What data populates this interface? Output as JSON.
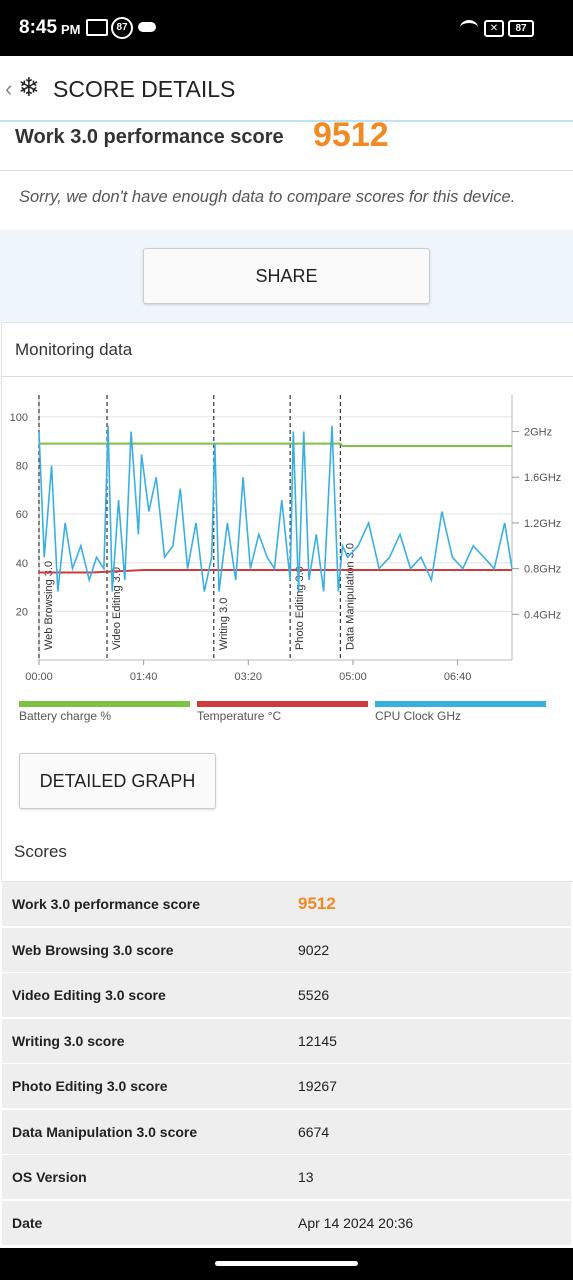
{
  "status": {
    "time": "8:45",
    "ampm": "PM",
    "badge": "87",
    "battery": "87"
  },
  "header": {
    "title": "SCORE DETAILS"
  },
  "score": {
    "label": "Work 3.0 performance score",
    "value": "9512",
    "note": "Sorry, we don't have enough data to compare scores for this device."
  },
  "share": "SHARE",
  "monitoring": {
    "title": "Monitoring data",
    "button": "DETAILED GRAPH"
  },
  "chart_data": {
    "type": "line",
    "xlim": [
      0,
      452
    ],
    "xticks": [
      {
        "value": 0,
        "label": "00:00"
      },
      {
        "value": 100,
        "label": "01:40"
      },
      {
        "value": 200,
        "label": "03:20"
      },
      {
        "value": 300,
        "label": "05:00"
      },
      {
        "value": 400,
        "label": "06:40"
      }
    ],
    "ylim": [
      0,
      109
    ],
    "yticks": [
      20,
      40,
      60,
      80,
      100
    ],
    "y2lim": [
      0,
      2.32
    ],
    "y2ticks": [
      {
        "value": 0.4,
        "label": "0.4GHz"
      },
      {
        "value": 0.8,
        "label": "0.8GHz"
      },
      {
        "value": 1.2,
        "label": "1.2GHz"
      },
      {
        "value": 1.6,
        "label": "1.6GHz"
      },
      {
        "value": 2,
        "label": "2GHz"
      }
    ],
    "grid": true,
    "markers": [
      {
        "label": "Web Browsing 3.0",
        "x": 0
      },
      {
        "label": "Video Editing 3.0",
        "x": 65
      },
      {
        "label": "Writing 3.0",
        "x": 167
      },
      {
        "label": "Photo Editing 3.0",
        "x": 240
      },
      {
        "label": "Data Manipulation 3.0",
        "x": 288
      }
    ],
    "series": [
      {
        "name": "Battery charge %",
        "color": "#7dc242",
        "x": [
          0,
          288,
          290,
          452
        ],
        "values": [
          89,
          89,
          88,
          88
        ]
      },
      {
        "name": "Temperature °C",
        "color": "#d03a3a",
        "x": [
          0,
          50,
          100,
          150,
          200,
          250,
          300,
          350,
          400,
          452
        ],
        "values": [
          36,
          36,
          37,
          37,
          37,
          37,
          37,
          37,
          37,
          37
        ]
      },
      {
        "name": "CPU Clock GHz",
        "color": "#3bb0e0",
        "axis": "y2",
        "x": [
          0,
          5,
          12,
          18,
          25,
          32,
          40,
          48,
          55,
          62,
          66,
          70,
          76,
          82,
          88,
          95,
          98,
          105,
          112,
          120,
          128,
          135,
          142,
          150,
          158,
          165,
          168,
          172,
          180,
          188,
          195,
          202,
          210,
          218,
          225,
          232,
          240,
          243,
          248,
          253,
          258,
          265,
          272,
          280,
          286,
          290,
          295,
          305,
          315,
          325,
          335,
          345,
          355,
          365,
          375,
          385,
          395,
          405,
          415,
          425,
          435,
          445,
          452
        ],
        "values": [
          2.0,
          0.9,
          1.7,
          0.6,
          1.2,
          0.8,
          1.0,
          0.7,
          0.9,
          0.8,
          2.05,
          0.6,
          1.4,
          0.7,
          2.0,
          1.1,
          1.8,
          1.3,
          1.6,
          0.9,
          1.0,
          1.5,
          0.8,
          1.2,
          0.6,
          0.9,
          1.9,
          0.6,
          1.2,
          0.7,
          1.6,
          0.8,
          1.1,
          0.9,
          0.8,
          1.4,
          0.7,
          2.0,
          0.6,
          2.0,
          0.7,
          1.1,
          0.6,
          2.05,
          0.6,
          1.0,
          0.9,
          1.0,
          1.2,
          0.8,
          0.9,
          1.1,
          0.8,
          0.9,
          0.7,
          1.3,
          0.9,
          0.8,
          1.0,
          0.9,
          0.8,
          1.2,
          0.8
        ]
      }
    ]
  },
  "scores": {
    "title": "Scores",
    "rows": [
      [
        "Work 3.0 performance score",
        "9512"
      ],
      [
        "Web Browsing 3.0 score",
        "9022"
      ],
      [
        "Video Editing 3.0 score",
        "5526"
      ],
      [
        "Writing 3.0 score",
        "12145"
      ],
      [
        "Photo Editing 3.0 score",
        "19267"
      ],
      [
        "Data Manipulation 3.0 score",
        "6674"
      ],
      [
        "OS Version",
        "13"
      ],
      [
        "Date",
        "Apr 14 2024 20:36"
      ]
    ]
  }
}
